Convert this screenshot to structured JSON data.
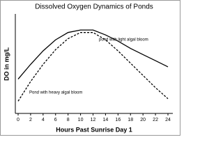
{
  "chart_data": {
    "type": "line",
    "title": "Dissolved Oxygen Dynamics of Ponds",
    "x_label": "Hours Past Sunrise Day 1",
    "y_label": "DO  in mg/L",
    "x": [
      0,
      2,
      4,
      6,
      8,
      10,
      12,
      14,
      16,
      18,
      20,
      22,
      24
    ],
    "series": [
      {
        "name": "pond with light algal bloom",
        "color": "#000000",
        "dash": false,
        "values": [
          2.8,
          4.0,
          5.1,
          6.0,
          6.6,
          6.8,
          6.8,
          6.4,
          5.9,
          5.3,
          4.8,
          4.3,
          3.8
        ]
      },
      {
        "name": "Pond with heavy algal bloom",
        "color": "#000000",
        "dash": true,
        "values": [
          1.0,
          2.6,
          4.0,
          5.2,
          6.1,
          6.6,
          6.6,
          6.0,
          5.1,
          4.1,
          3.1,
          2.1,
          1.2
        ]
      }
    ],
    "xlim": [
      0,
      24
    ],
    "xticks": [
      0,
      2,
      4,
      6,
      8,
      10,
      12,
      14,
      16,
      18,
      20,
      22,
      24
    ],
    "ylim": [
      0,
      8
    ]
  }
}
